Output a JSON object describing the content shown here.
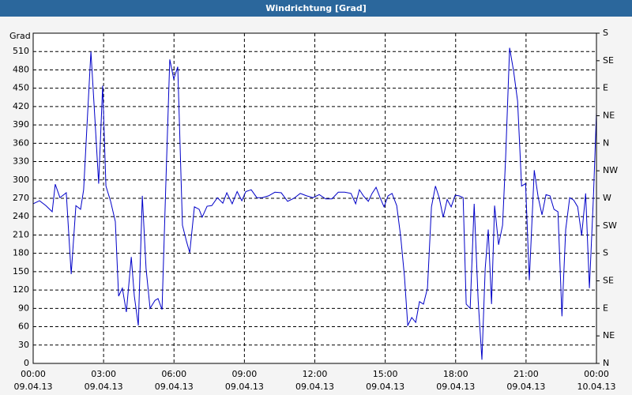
{
  "chart_data": {
    "type": "line",
    "title": "Windrichtung [Grad]",
    "ylabel": "Grad",
    "grid": true,
    "xlim": [
      0,
      24
    ],
    "xticks": [
      {
        "value": 0,
        "label": "00:00",
        "sublabel": "09.04.13"
      },
      {
        "value": 3,
        "label": "03:00",
        "sublabel": "09.04.13"
      },
      {
        "value": 6,
        "label": "06:00",
        "sublabel": "09.04.13"
      },
      {
        "value": 9,
        "label": "09:00",
        "sublabel": "09.04.13"
      },
      {
        "value": 12,
        "label": "12:00",
        "sublabel": "09.04.13"
      },
      {
        "value": 15,
        "label": "15:00",
        "sublabel": "09.04.13"
      },
      {
        "value": 18,
        "label": "18:00",
        "sublabel": "09.04.13"
      },
      {
        "value": 21,
        "label": "21:00",
        "sublabel": "09.04.13"
      },
      {
        "value": 24,
        "label": "00:00",
        "sublabel": "10.04.13"
      }
    ],
    "ylim": [
      0,
      540
    ],
    "yticks": [
      0,
      30,
      60,
      90,
      120,
      150,
      180,
      210,
      240,
      270,
      300,
      330,
      360,
      390,
      420,
      450,
      480,
      510
    ],
    "y2lim": [
      0,
      540
    ],
    "y2ticks": [
      {
        "value": 0,
        "label": "N"
      },
      {
        "value": 45,
        "label": "NE"
      },
      {
        "value": 90,
        "label": "E"
      },
      {
        "value": 135,
        "label": "SE"
      },
      {
        "value": 180,
        "label": "S"
      },
      {
        "value": 225,
        "label": "SW"
      },
      {
        "value": 270,
        "label": "W"
      },
      {
        "value": 315,
        "label": "NW"
      },
      {
        "value": 360,
        "label": "N"
      },
      {
        "value": 405,
        "label": "NE"
      },
      {
        "value": 450,
        "label": "E"
      },
      {
        "value": 495,
        "label": "SE"
      },
      {
        "value": 540,
        "label": "S"
      }
    ],
    "series": [
      {
        "color": "#0000c8",
        "x": [
          0,
          0.27,
          0.54,
          0.81,
          0.94,
          1.14,
          1.41,
          1.62,
          1.82,
          2.02,
          2.15,
          2.29,
          2.46,
          2.63,
          2.79,
          2.96,
          3.1,
          3.3,
          3.5,
          3.64,
          3.8,
          3.97,
          4.18,
          4.31,
          4.48,
          4.65,
          4.81,
          4.98,
          5.19,
          5.32,
          5.49,
          5.66,
          5.82,
          5.99,
          6.16,
          6.36,
          6.53,
          6.67,
          6.87,
          7.07,
          7.2,
          7.41,
          7.61,
          7.85,
          8.08,
          8.25,
          8.48,
          8.69,
          8.89,
          9.06,
          9.29,
          9.53,
          9.76,
          10.03,
          10.3,
          10.57,
          10.84,
          11.11,
          11.38,
          11.65,
          11.92,
          12.19,
          12.46,
          12.73,
          13.0,
          13.27,
          13.54,
          13.74,
          13.9,
          14.07,
          14.28,
          14.44,
          14.61,
          14.78,
          14.95,
          15.12,
          15.29,
          15.49,
          15.66,
          15.82,
          15.96,
          16.13,
          16.3,
          16.46,
          16.63,
          16.8,
          16.97,
          17.14,
          17.3,
          17.47,
          17.64,
          17.81,
          17.98,
          18.15,
          18.32,
          18.45,
          18.62,
          18.79,
          18.96,
          19.12,
          19.26,
          19.39,
          19.53,
          19.66,
          19.83,
          20.0,
          20.13,
          20.3,
          20.47,
          20.64,
          20.81,
          20.98,
          21.14,
          21.35,
          21.52,
          21.68,
          21.85,
          22.02,
          22.19,
          22.36,
          22.53,
          22.69,
          22.86,
          23.03,
          23.2,
          23.37,
          23.54,
          23.7,
          23.87,
          24.0
        ],
        "values": [
          261,
          266,
          258,
          248,
          293,
          271,
          279,
          146,
          258,
          252,
          284,
          387,
          510,
          400,
          294,
          454,
          290,
          265,
          232,
          110,
          123,
          84,
          174,
          110,
          62,
          274,
          155,
          90,
          103,
          106,
          88,
          303,
          497,
          465,
          485,
          226,
          200,
          181,
          256,
          252,
          239,
          257,
          258,
          271,
          262,
          279,
          261,
          281,
          266,
          281,
          284,
          271,
          271,
          274,
          280,
          279,
          265,
          270,
          278,
          274,
          271,
          276,
          269,
          269,
          280,
          280,
          278,
          261,
          284,
          274,
          265,
          278,
          288,
          271,
          256,
          274,
          278,
          258,
          207,
          142,
          62,
          75,
          67,
          101,
          97,
          123,
          256,
          290,
          271,
          239,
          268,
          256,
          275,
          274,
          271,
          97,
          90,
          261,
          103,
          6,
          155,
          219,
          97,
          258,
          194,
          226,
          336,
          516,
          478,
          429,
          290,
          294,
          136,
          316,
          271,
          243,
          276,
          274,
          252,
          248,
          77,
          219,
          271,
          267,
          256,
          209,
          278,
          123,
          271,
          410
        ]
      }
    ]
  }
}
